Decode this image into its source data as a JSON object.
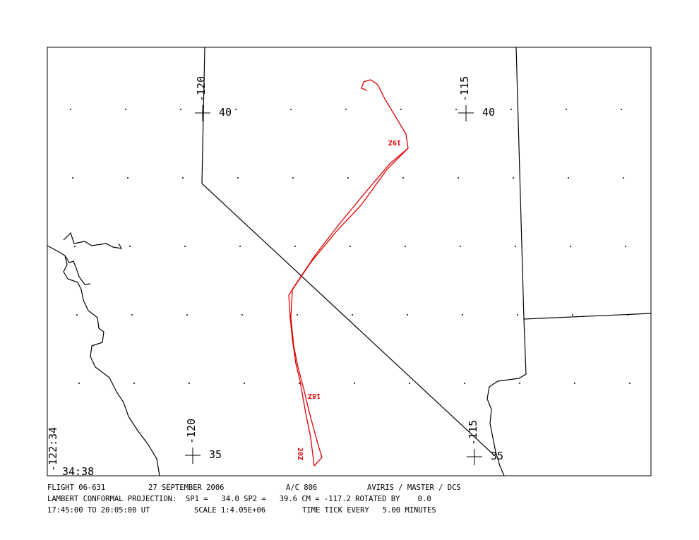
{
  "map": {
    "grid_labels": [
      {
        "lon": "-120",
        "lat": "40"
      },
      {
        "lon": "-115",
        "lat": "40"
      },
      {
        "lon": "-120",
        "lat": "35"
      },
      {
        "lon": "-115",
        "lat": "35"
      }
    ],
    "corner_lon": "-122:34",
    "corner_lat": "34:38",
    "time_labels": [
      "19Z",
      "18Z",
      "20Z"
    ]
  },
  "footer": {
    "line1": [
      "FLIGHT 06-631",
      "27 SEPTEMBER 2006",
      "A/C 806",
      "AVIRIS / MASTER / DCS"
    ],
    "line2": "LAMBERT CONFORMAL PROJECTION:  SP1 =   34.0 SP2 =   39.6 CM = -117.2 ROTATED BY    0.0",
    "line3": [
      "17:45:00 TO 20:05:00 UT",
      "SCALE 1:4.05E+06",
      "TIME TICK EVERY   5.00 MINUTES"
    ]
  }
}
